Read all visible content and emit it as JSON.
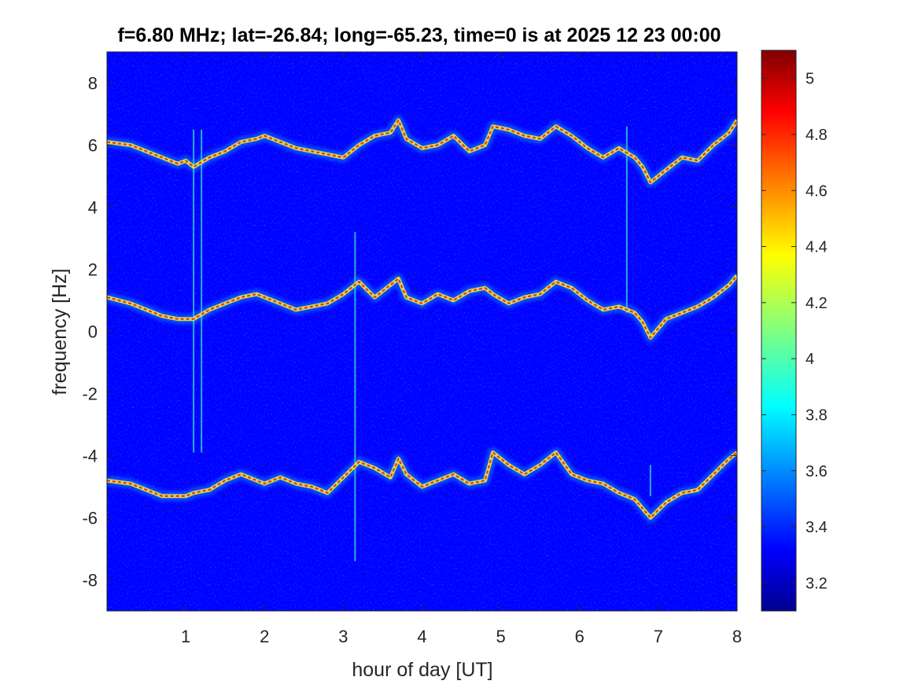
{
  "chart_data": {
    "type": "heatmap",
    "title": "f=6.80 MHz;  lat=-26.84; long=-65.23, time=0 is at 2025 12 23 00:00",
    "xlabel": "hour of day [UT]",
    "ylabel": "frequency [Hz]",
    "xlim": [
      0,
      8
    ],
    "ylim": [
      -9,
      9
    ],
    "xticks": [
      1,
      2,
      3,
      4,
      5,
      6,
      7,
      8
    ],
    "xtick_labels": [
      "1",
      "2",
      "3",
      "4",
      "5",
      "6",
      "7",
      "8"
    ],
    "yticks": [
      8,
      6,
      4,
      2,
      0,
      -2,
      -4,
      -6,
      -8
    ],
    "ytick_labels": [
      "8",
      "6",
      "4",
      "2",
      "0",
      "-2",
      "-4",
      "-6",
      "-8"
    ],
    "colormap": "jet",
    "clim": [
      3.1,
      5.1
    ],
    "colorbar_ticks": [
      3.2,
      3.4,
      3.6,
      3.8,
      4,
      4.2,
      4.4,
      4.6,
      4.8,
      5
    ],
    "colorbar_tick_labels": [
      "3.2",
      "3.4",
      "3.6",
      "3.8",
      "4",
      "4.2",
      "4.4",
      "4.6",
      "4.8",
      "5"
    ],
    "background_level": 3.35,
    "traces": [
      {
        "x": [
          0.0,
          0.3,
          0.5,
          0.7,
          0.9,
          1.0,
          1.1,
          1.3,
          1.5,
          1.7,
          1.9,
          2.0,
          2.2,
          2.4,
          2.6,
          2.8,
          3.0,
          3.2,
          3.4,
          3.6,
          3.7,
          3.8,
          4.0,
          4.2,
          4.4,
          4.6,
          4.8,
          4.9,
          5.1,
          5.3,
          5.5,
          5.7,
          5.9,
          6.1,
          6.3,
          6.5,
          6.7,
          6.8,
          6.9,
          7.1,
          7.3,
          7.5,
          7.7,
          7.9,
          8.0
        ],
        "y": [
          6.1,
          6.0,
          5.8,
          5.6,
          5.4,
          5.5,
          5.3,
          5.6,
          5.8,
          6.1,
          6.2,
          6.3,
          6.1,
          5.9,
          5.8,
          5.7,
          5.6,
          6.0,
          6.3,
          6.4,
          6.8,
          6.2,
          5.9,
          6.0,
          6.3,
          5.8,
          6.0,
          6.6,
          6.5,
          6.3,
          6.2,
          6.6,
          6.3,
          5.9,
          5.6,
          5.9,
          5.6,
          5.3,
          4.8,
          5.2,
          5.6,
          5.5,
          6.0,
          6.4,
          6.8
        ]
      },
      {
        "x": [
          0.0,
          0.3,
          0.5,
          0.7,
          0.9,
          1.0,
          1.1,
          1.3,
          1.5,
          1.7,
          1.9,
          2.0,
          2.2,
          2.4,
          2.6,
          2.8,
          3.0,
          3.2,
          3.4,
          3.6,
          3.7,
          3.8,
          4.0,
          4.2,
          4.4,
          4.6,
          4.8,
          4.9,
          5.1,
          5.3,
          5.5,
          5.7,
          5.9,
          6.1,
          6.3,
          6.5,
          6.7,
          6.8,
          6.9,
          7.1,
          7.3,
          7.5,
          7.7,
          7.9,
          8.0
        ],
        "y": [
          1.1,
          0.9,
          0.7,
          0.5,
          0.4,
          0.4,
          0.4,
          0.7,
          0.9,
          1.1,
          1.2,
          1.1,
          0.9,
          0.7,
          0.8,
          0.9,
          1.2,
          1.6,
          1.1,
          1.5,
          1.7,
          1.1,
          0.9,
          1.2,
          1.0,
          1.3,
          1.4,
          1.2,
          0.9,
          1.1,
          1.2,
          1.6,
          1.4,
          1.0,
          0.7,
          0.8,
          0.6,
          0.3,
          -0.2,
          0.4,
          0.6,
          0.8,
          1.1,
          1.5,
          1.8
        ]
      },
      {
        "x": [
          0.0,
          0.3,
          0.5,
          0.7,
          0.9,
          1.0,
          1.1,
          1.3,
          1.5,
          1.7,
          1.9,
          2.0,
          2.2,
          2.4,
          2.6,
          2.8,
          3.0,
          3.2,
          3.4,
          3.6,
          3.7,
          3.8,
          4.0,
          4.2,
          4.4,
          4.6,
          4.8,
          4.9,
          5.1,
          5.3,
          5.5,
          5.7,
          5.9,
          6.1,
          6.3,
          6.5,
          6.7,
          6.8,
          6.9,
          7.1,
          7.3,
          7.5,
          7.7,
          7.9,
          8.0
        ],
        "y": [
          -4.8,
          -4.9,
          -5.1,
          -5.3,
          -5.3,
          -5.3,
          -5.2,
          -5.1,
          -4.8,
          -4.6,
          -4.8,
          -4.9,
          -4.7,
          -4.9,
          -5.0,
          -5.2,
          -4.7,
          -4.2,
          -4.4,
          -4.7,
          -4.1,
          -4.6,
          -5.0,
          -4.8,
          -4.6,
          -4.9,
          -4.8,
          -3.9,
          -4.3,
          -4.6,
          -4.3,
          -3.9,
          -4.6,
          -4.8,
          -4.9,
          -5.2,
          -5.4,
          -5.7,
          -6.0,
          -5.5,
          -5.2,
          -5.1,
          -4.6,
          -4.1,
          -3.9
        ]
      }
    ],
    "vertical_streaks": [
      {
        "x": 1.1,
        "y": [
          -3.9,
          6.5
        ]
      },
      {
        "x": 1.2,
        "y": [
          -3.9,
          6.5
        ]
      },
      {
        "x": 3.15,
        "y": [
          -7.4,
          3.2
        ]
      },
      {
        "x": 6.6,
        "y": [
          0.6,
          6.6
        ]
      },
      {
        "x": 6.9,
        "y": [
          -5.3,
          -4.3
        ]
      }
    ]
  }
}
